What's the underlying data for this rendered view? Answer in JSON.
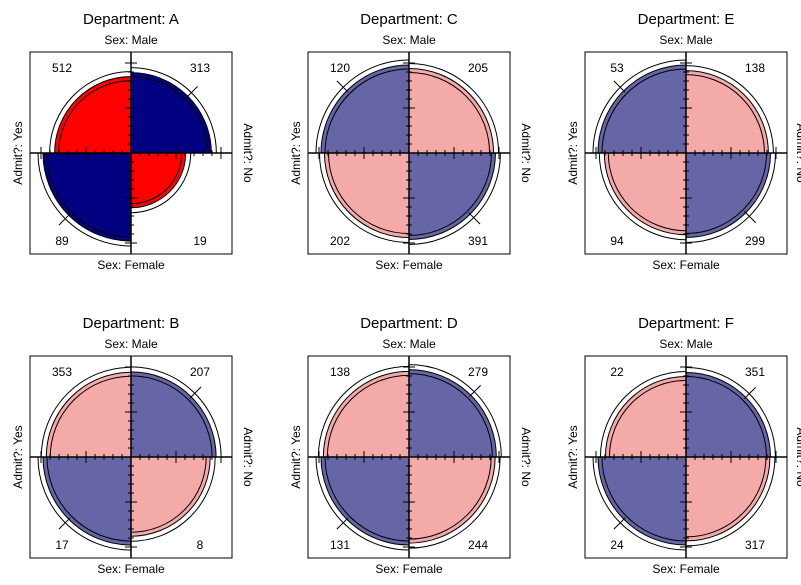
{
  "chart_data": [
    {
      "type": "fourfold",
      "title": "Department: A",
      "top_label": "Sex: Male",
      "bottom_label": "Sex: Female",
      "left_label": "Admit?: Yes",
      "right_label": "Admit?: No",
      "counts": {
        "male_yes": 512,
        "male_no": 313,
        "female_yes": 89,
        "female_no": 19
      },
      "colors": {
        "pos": "#000080",
        "neg": "#ff0000"
      },
      "diagonal": "pos"
    },
    {
      "type": "fourfold",
      "title": "Department: C",
      "top_label": "Sex: Male",
      "bottom_label": "Sex: Female",
      "left_label": "Admit?: Yes",
      "right_label": "Admit?: No",
      "counts": {
        "male_yes": 120,
        "male_no": 205,
        "female_yes": 202,
        "female_no": 391
      },
      "colors": {
        "pos": "#6666a6",
        "neg": "#f5aaaa"
      },
      "diagonal": "pos"
    },
    {
      "type": "fourfold",
      "title": "Department: E",
      "top_label": "Sex: Male",
      "bottom_label": "Sex: Female",
      "left_label": "Admit?: Yes",
      "right_label": "Admit?: No",
      "counts": {
        "male_yes": 53,
        "male_no": 138,
        "female_yes": 94,
        "female_no": 299
      },
      "colors": {
        "pos": "#6666a6",
        "neg": "#f5aaaa"
      },
      "diagonal": "pos"
    },
    {
      "type": "fourfold",
      "title": "Department: B",
      "top_label": "Sex: Male",
      "bottom_label": "Sex: Female",
      "left_label": "Admit?: Yes",
      "right_label": "Admit?: No",
      "counts": {
        "male_yes": 353,
        "male_no": 207,
        "female_yes": 17,
        "female_no": 8
      },
      "colors": {
        "pos": "#6666a6",
        "neg": "#f5aaaa"
      },
      "diagonal": "pos"
    },
    {
      "type": "fourfold",
      "title": "Department: D",
      "top_label": "Sex: Male",
      "bottom_label": "Sex: Female",
      "left_label": "Admit?: Yes",
      "right_label": "Admit?: No",
      "counts": {
        "male_yes": 138,
        "male_no": 279,
        "female_yes": 131,
        "female_no": 244
      },
      "colors": {
        "pos": "#6666a6",
        "neg": "#f5aaaa"
      },
      "diagonal": "pos"
    },
    {
      "type": "fourfold",
      "title": "Department: F",
      "top_label": "Sex: Male",
      "bottom_label": "Sex: Female",
      "left_label": "Admit?: Yes",
      "right_label": "Admit?: No",
      "counts": {
        "male_yes": 22,
        "male_no": 351,
        "female_yes": 24,
        "female_no": 317
      },
      "colors": {
        "pos": "#6666a6",
        "neg": "#f5aaaa"
      },
      "diagonal": "pos"
    }
  ]
}
